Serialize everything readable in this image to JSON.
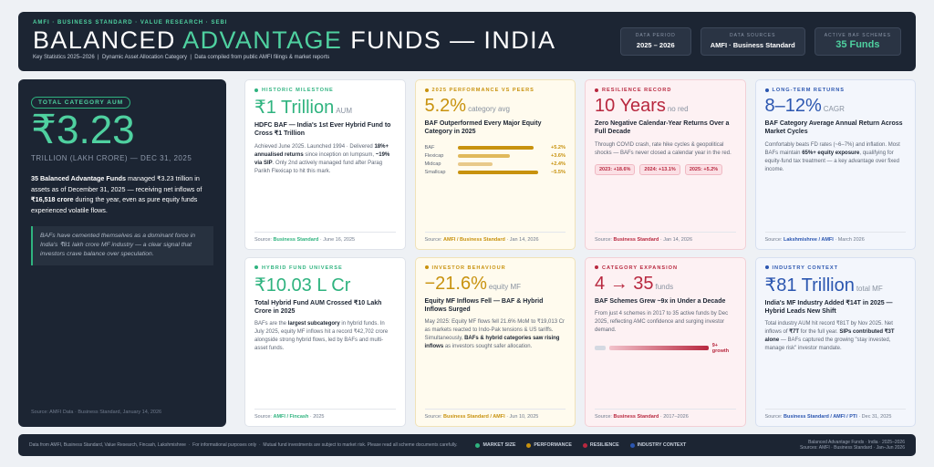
{
  "header": {
    "tagline": "AMFI · BUSINESS STANDARD · VALUE RESEARCH · SEBI",
    "title_parts": [
      "BALANCED ",
      "ADVANTAGE",
      " FUNDS — INDIA"
    ],
    "subtitle": "Key Statistics 2025–2026  |  Dynamic Asset Allocation Category  |  Data compiled from public AMFI filings & market reports",
    "boxes": [
      {
        "label": "DATA PERIOD",
        "value": "2025 – 2026"
      },
      {
        "label": "DATA SOURCES",
        "value": "AMFI · Business Standard"
      },
      {
        "label": "ACTIVE BAF SCHEMES",
        "value": "35 Funds"
      }
    ]
  },
  "hero": {
    "badge": "TOTAL CATEGORY AUM",
    "value": "₹3.23",
    "unit": "TRILLION (LAKH CRORE) — DEC 31, 2025",
    "body": [
      {
        "text": "35 Balanced Advantage Funds",
        "bold": true
      },
      {
        "text": " managed ₹3.23 trillion in assets as of December 31, 2025 — receiving net inflows of "
      },
      {
        "text": "₹16,518 crore",
        "bold": true
      },
      {
        "text": " during the year, even as pure equity funds experienced volatile flows."
      }
    ],
    "quote": "BAFs have cemented themselves as a dominant force in India's ₹81 lakh crore MF industry — a clear signal that investors crave balance over speculation.",
    "source": "Source: AMFI Data · Business Standard, January 14, 2026"
  },
  "cards": [
    {
      "label": "HISTORIC MILESTONE",
      "stat": "₹1 Trillion",
      "unit": "AUM",
      "heading": "HDFC BAF — India's 1st Ever Hybrid Fund to Cross ₹1 Trillion",
      "body": [
        {
          "text": "Achieved June 2025. Launched 1994 · Delivered "
        },
        {
          "text": "18%+ annualised returns",
          "bold": true
        },
        {
          "text": " since inception on lumpsum, "
        },
        {
          "text": "~19% via SIP",
          "bold": true
        },
        {
          "text": ". Only 2nd actively managed fund after Parag Parikh Flexicap to hit this mark."
        }
      ],
      "source": {
        "prefix": "Source:",
        "name": "Business Standard",
        "date": "· June 16, 2025"
      }
    },
    {
      "label": "2025 PERFORMANCE VS PEERS",
      "stat": "5.2%",
      "unit": "category avg",
      "heading": "BAF Outperformed Every Major Equity Category in 2025",
      "bars": {
        "categories": [
          "BAF",
          "Flexicap",
          "Midcap",
          "Smallcap"
        ],
        "values": [
          5.2,
          3.6,
          2.4,
          -5.5
        ],
        "value_labels": [
          "+5.2%",
          "+3.6%",
          "+2.4%",
          "−5.5%"
        ],
        "colors": [
          "#c8920e",
          "#e0b95c",
          "#e8c98a",
          "#c8920e"
        ],
        "xlim": [
          0,
          6
        ]
      },
      "source": {
        "prefix": "Source:",
        "name": "AMFI / Business Standard",
        "date": "· Jan 14, 2026"
      }
    },
    {
      "label": "RESILIENCE RECORD",
      "stat": "10 Years",
      "unit": "no red",
      "heading": "Zero Negative Calendar-Year Returns Over a Full Decade",
      "body": [
        {
          "text": "Through COVID crash, rate hike cycles & geopolitical shocks — BAFs never closed a calendar year in the red."
        }
      ],
      "pills": [
        "2023: +18.6%",
        "2024: +13.1%",
        "2025: +5.2%"
      ],
      "source": {
        "prefix": "Source:",
        "name": "Business Standard",
        "date": "· Jan 14, 2026"
      }
    },
    {
      "label": "LONG-TERM RETURNS",
      "stat": "8–12%",
      "unit": "CAGR",
      "heading": "BAF Category Average Annual Return Across Market Cycles",
      "body": [
        {
          "text": "Comfortably beats FD rates (~6–7%) and inflation. Most BAFs maintain "
        },
        {
          "text": "65%+ equity exposure",
          "bold": true
        },
        {
          "text": ", qualifying for equity-fund tax treatment — a key advantage over fixed income."
        }
      ],
      "source": {
        "prefix": "Source:",
        "name": "Lakshmishree / AMFI",
        "date": "· March 2026"
      }
    },
    {
      "label": "HYBRID FUND UNIVERSE",
      "stat": "₹10.03 L Cr",
      "heading": "Total Hybrid Fund AUM Crossed ₹10 Lakh Crore in 2025",
      "body": [
        {
          "text": "BAFs are the "
        },
        {
          "text": "largest subcategory",
          "bold": true
        },
        {
          "text": " in hybrid funds. In July 2025, equity MF inflows hit a record ₹42,702 crore alongside strong hybrid flows, led by BAFs and multi-asset funds."
        }
      ],
      "source": {
        "prefix": "Source:",
        "name": "AMFI / Fincash",
        "date": "· 2025"
      }
    },
    {
      "label": "INVESTOR BEHAVIOUR",
      "stat": "−21.6%",
      "unit": "equity MF",
      "heading": "Equity MF Inflows Fell — BAF & Hybrid Inflows Surged",
      "body": [
        {
          "text": "May 2025: Equity MF flows fell 21.6% MoM to ₹19,013 Cr as markets reacted to Indo-Pak tensions & US tariffs. Simultaneously, "
        },
        {
          "text": "BAFs & hybrid categories saw rising inflows",
          "bold": true
        },
        {
          "text": " as investors sought safer allocation."
        }
      ],
      "source": {
        "prefix": "Source:",
        "name": "Business Standard / AMFI",
        "date": "· Jun 10, 2025"
      }
    },
    {
      "label": "CATEGORY EXPANSION",
      "stat_from": 4,
      "arrow": "→",
      "stat_to": 35,
      "unit": "funds",
      "heading": "BAF Schemes Grew ~9x in Under a Decade",
      "body": [
        {
          "text": "From just 4 schemes in 2017 to 35 active funds by Dec 2025, reflecting AMC confidence and surging investor demand."
        }
      ],
      "growth_label": "9+ growth",
      "source": {
        "prefix": "Source:",
        "name": "Business Standard",
        "date": "· 2017–2026"
      }
    },
    {
      "label": "INDUSTRY CONTEXT",
      "stat": "₹81 Trillion",
      "unit": "total MF",
      "heading": "India's MF Industry Added ₹14T in 2025 — Hybrid Leads New Shift",
      "body": [
        {
          "text": "Total industry AUM hit record ₹81T by Nov 2025. Net inflows of "
        },
        {
          "text": "₹7T",
          "bold": true
        },
        {
          "text": " for the full year. "
        },
        {
          "text": "SIPs contributed ₹3T alone",
          "bold": true
        },
        {
          "text": " — BAFs captured the growing \"stay invested, manage risk\" investor mandate."
        }
      ],
      "source": {
        "prefix": "Source:",
        "name": "Business Standard / AMFI / PTI",
        "date": "· Dec 31, 2025"
      }
    }
  ],
  "footer": {
    "note": "Data from AMFI, Business Standard, Value Research, Fincash, Lakshmishree  ·  For informational purposes only  ·  Mutual fund investments are subject to market risk. Please read all scheme documents carefully.",
    "legend": [
      {
        "name": "MARKET SIZE",
        "color": "#2fb37f"
      },
      {
        "name": "PERFORMANCE",
        "color": "#c8920e"
      },
      {
        "name": "RESILIENCE",
        "color": "#b8283f"
      },
      {
        "name": "INDUSTRY CONTEXT",
        "color": "#2b56b0"
      }
    ],
    "right": [
      "Balanced Advantage Funds · India · 2025–2026",
      "Sources: AMFI · Business Standard · Jan–Jun 2026"
    ]
  }
}
